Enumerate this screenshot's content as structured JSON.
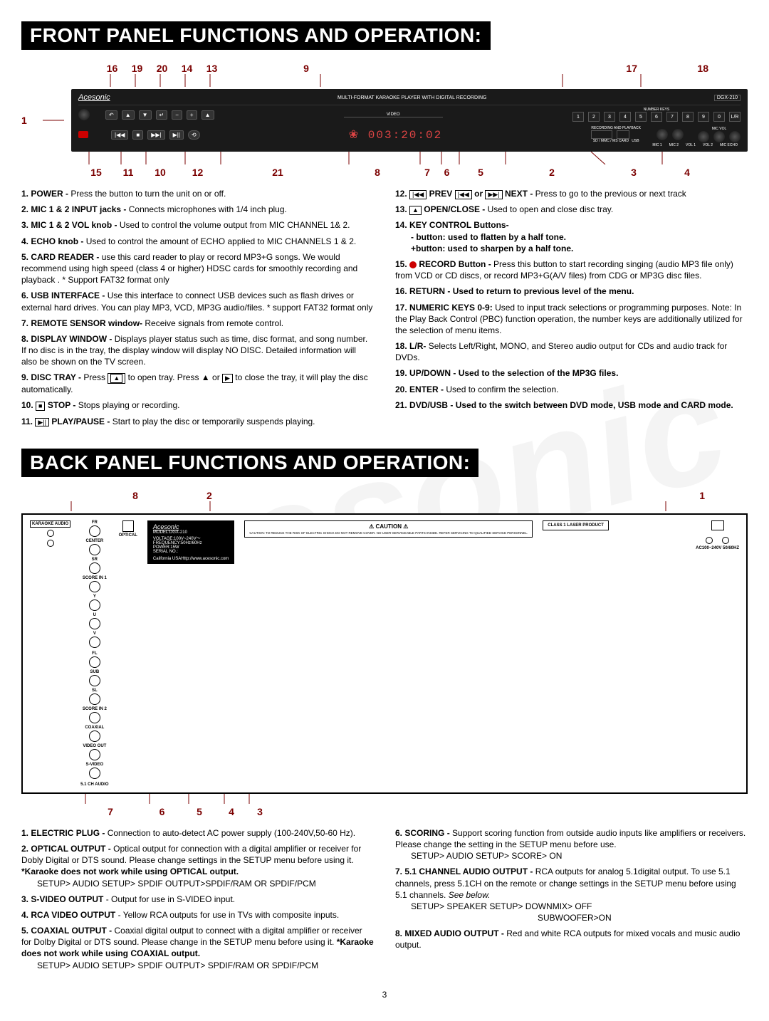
{
  "watermark": "Acesonic",
  "page_number": "3",
  "front": {
    "title": "Front Panel Functions and Operation:",
    "callouts_top": [
      "16",
      "19",
      "20",
      "14",
      "13",
      "9",
      "17",
      "18"
    ],
    "callouts_bottom_left": [
      "1"
    ],
    "callouts_bottom": [
      "15",
      "11",
      "10",
      "12",
      "21",
      "8",
      "7",
      "6",
      "5",
      "2",
      "3",
      "4"
    ],
    "device": {
      "brand": "Acesonic",
      "header": "MULTI-FORMAT KARAOKE PLAYER WITH DIGITAL RECORDING",
      "model": "DGX-210",
      "numkeys": [
        "1",
        "2",
        "3",
        "4",
        "5",
        "6",
        "7",
        "8",
        "9",
        "0",
        "L/R"
      ],
      "numkeys_label": "NUMBER KEYS",
      "lcd": "003:20:02",
      "video_label": "VIDEO",
      "rec_label": "RECORDING AND PLAYBACK",
      "sd_label": "SD / MMC / MS CARD",
      "usb_label": "USB",
      "mic1": "MIC 1",
      "mic2": "MIC 2",
      "vol1": "VOL 1",
      "vol2": "VOL 2",
      "echo": "MIC ECHO",
      "micvol": "MIC VOL"
    },
    "left_items": [
      {
        "n": "1.",
        "b": "POWER - ",
        "t": "Press the button to turn the unit on or off."
      },
      {
        "n": "2.",
        "b": "MIC 1 & 2 INPUT jacks - ",
        "t": "Connects microphones with 1/4 inch plug."
      },
      {
        "n": "3.",
        "b": "MIC 1 & 2 VOL knob - ",
        "t": "Used to control the volume output from MIC CHANNEL 1& 2."
      },
      {
        "n": "4.",
        "b": "ECHO knob - ",
        "t": "Used to control the amount of ECHO applied to MIC CHANNELS 1 & 2."
      },
      {
        "n": "5.",
        "b": "CARD READER - ",
        "t": "use this card reader to play or record MP3+G songs. We would recommend using high speed (class 4 or higher) HDSC cards for smoothly recording and playback . * Support FAT32 format only"
      },
      {
        "n": "6.",
        "b": "USB INTERFACE - ",
        "t": "Use this interface to connect USB devices such as flash drives or external hard drives. You can play MP3, VCD, MP3G audio/files. * support FAT32 format only"
      },
      {
        "n": "7.",
        "b": "REMOTE SENSOR window- ",
        "t": "Receive signals  from remote control."
      },
      {
        "n": "8.",
        "b": "DISPLAY WINDOW - ",
        "t": "Displays player status such as time, disc format, and song number. If no disc is in the tray, the display window will display NO DISC. Detailed information will also be shown on the TV screen."
      },
      {
        "n": "9.",
        "b": "DISC TRAY - ",
        "t": "Press ▲ to open tray. Press ▲ or ▶ to close the tray, it will play the disc  automatically.",
        "icons": [
          "eject",
          "eject",
          "play"
        ]
      },
      {
        "n": "10.",
        "b": "STOP - ",
        "t": "Stops playing or recording.",
        "preicon": "stop"
      },
      {
        "n": "11.",
        "b": "PLAY/PAUSE - ",
        "t": "Start to play the disc or temporarily suspends playing.",
        "preicon": "playpause"
      }
    ],
    "right_items": [
      {
        "n": "12.",
        "b": "PREV or NEXT - ",
        "t": "Press to go to the previous or next track",
        "preicon": "prev",
        "midicon": "next"
      },
      {
        "n": "13.",
        "b": "OPEN/CLOSE - ",
        "t": " Used to open and close disc tray.",
        "preicon": "eject"
      },
      {
        "n": "14.",
        "b": "KEY CONTROL Buttons-",
        "t": "",
        "sub": [
          "- button: used to flatten by a half tone.",
          "+button: used to sharpen by a half tone."
        ]
      },
      {
        "n": "15.",
        "b": "RECORD Button - ",
        "t": "Press this button to start recording singing (audio MP3 file only) from VCD or CD discs, or record MP3+G(A/V files) from CDG or MP3G disc files.",
        "preicon": "redcircle"
      },
      {
        "n": "16.",
        "b": "RETURN - Used to return to previous level of the menu.",
        "t": ""
      },
      {
        "n": "17.",
        "b": "NUMERIC KEYS 0-9: ",
        "t": "Used to input track selections or programming purposes.  Note: In the Play Back Control (PBC) function operation, the number keys are additionally utilized for the selection of menu items."
      },
      {
        "n": "18.",
        "b": "L/R- ",
        "t": "Selects  Left/Right, MONO, and Stereo audio output for CDs and audio track for DVDs."
      },
      {
        "n": "19.",
        "b": "UP/DOWN - Used to the selection of the MP3G files.",
        "t": ""
      },
      {
        "n": "20.",
        "b": "ENTER - ",
        "t": "Used to confirm the selection."
      },
      {
        "n": "21.",
        "b": "DVD/USB - Used to the switch between DVD mode, USB mode and CARD mode.",
        "t": ""
      }
    ]
  },
  "back": {
    "title": "Back Panel Functions and Operation:",
    "callouts_top": [
      "8",
      "2",
      "1"
    ],
    "callouts_bottom": [
      "7",
      "6",
      "5",
      "4",
      "3"
    ],
    "device": {
      "brand": "Acesonic",
      "karaoke_label": "KARAOKE AUDIO",
      "groups_top": [
        "FR",
        "CENTER",
        "SR",
        "SCORE IN 1",
        "Y",
        "U",
        "V"
      ],
      "groups_bot": [
        "FL",
        "SUB",
        "SL",
        "SCORE IN 2",
        "COAXIAL",
        "VIDEO OUT",
        "S-VIDEO"
      ],
      "audio51": "5.1 CH   AUDIO",
      "optical": "OPTICAL",
      "model_block": [
        "MODEL:DGX-210",
        "VOLTAGE:100V~240V～",
        "FREQUENCY:50Hz/60Hz",
        "POWER:15W",
        "SERIAL NO.:"
      ],
      "made": "California USA",
      "url": "Http://www.acesonic.com",
      "caution": "CAUTION",
      "caution_text": "CAUTION: TO REDUCE THE RISK OF ELECTRIC SHOCK DO NOT REMOVE COVER. NO USER-SERVICEABLE PARTS INSIDE. REFER SERVICING TO QUALIFIED SERVICE PERSONNEL.",
      "class1": "CLASS 1 LASER PRODUCT",
      "ac": "AC100~240V 50/60HZ"
    },
    "left_items": [
      {
        "n": "1.",
        "b": "ELECTRIC PLUG - ",
        "t": "Connection to auto-detect AC power supply  (100-240V,50-60 Hz)."
      },
      {
        "n": "2.",
        "b": "OPTICAL OUTPUT - ",
        "t": "Optical output for connection with a digital amplifier or receiver for Dobly Digital or DTS sound. Please change settings in the SETUP menu before using it. *Karaoke does not work while using OPTICAL output.",
        "bold_tail": "*Karaoke does not work while using OPTICAL output.",
        "path": "SETUP> AUDIO SETUP> SPDIF OUTPUT>SPDIF/RAM OR SPDIF/PCM"
      },
      {
        "n": "3.",
        "b": "S-VIDEO OUTPUT ",
        "t": "- Output for use in  S-VIDEO input."
      },
      {
        "n": "4.",
        "b": "RCA VIDEO OUTPUT ",
        "t": "- Yellow RCA outputs for use in TVs with composite inputs."
      },
      {
        "n": "5.",
        "b": "COAXIAL OUTPUT - ",
        "t": "Coaxial digital output to connect with a digital amplifier or receiver for Dolby Digital or DTS sound. Please change in the SETUP menu before using it. *Karaoke does not work while using COAXIAL output.",
        "bold_tail": "*Karaoke does not work while using COAXIAL output.",
        "path": "SETUP> AUDIO SETUP> SPDIF OUTPUT> SPDIF/RAM OR SPDIF/PCM"
      }
    ],
    "right_items": [
      {
        "n": "6.",
        "b": "SCORING - ",
        "t": "Support scoring function from outside audio inputs like amplifiers or receivers. Please change the setting in the SETUP menu before use.",
        "path": "SETUP> AUDIO SETUP> SCORE> ON"
      },
      {
        "n": "7.",
        "b": "5.1 CHANNEL AUDIO OUTPUT - ",
        "t": "RCA outputs for analog 5.1digital output. To use 5.1 channels, press 5.1CH on the remote or change settings in the SETUP menu before using 5.1 channels. See below.",
        "italic_tail": "See below.",
        "path": "SETUP> SPEAKER SETUP> DOWNMIX> OFF",
        "path2": "SUBWOOFER>ON"
      },
      {
        "n": "8.",
        "b": "MIXED AUDIO OUTPUT - ",
        "t": "Red and white RCA outputs for mixed vocals and music audio output."
      }
    ]
  }
}
